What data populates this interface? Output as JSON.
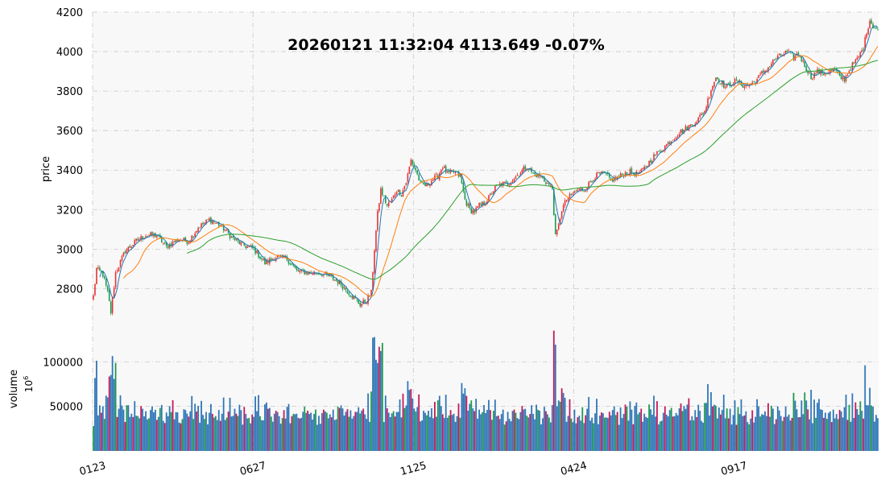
{
  "chart_data": [
    {
      "type": "candlestick",
      "title": "20260121 11:32:04   4113.649 -0.07%",
      "xlabel": "",
      "ylabel": "price",
      "ylim": [
        2610,
        4200
      ],
      "yticks": [
        2800,
        3000,
        3200,
        3400,
        3600,
        3800,
        4000,
        4200
      ],
      "xticks": [
        "0123",
        "0627",
        "1125",
        "0424",
        "0917"
      ],
      "grid": true,
      "legend": "none",
      "colors": {
        "up": "#e8312f",
        "down": "#1b9a4b",
        "ma_short": "#1f77b4",
        "ma_mid": "#ff7f0e",
        "ma_long": "#2ca02c"
      },
      "series": [
        {
          "name": "close",
          "anchors": [
            [
              0,
              2760
            ],
            [
              2,
              2900
            ],
            [
              6,
              2870
            ],
            [
              9,
              2780
            ],
            [
              11,
              2680
            ],
            [
              14,
              2880
            ],
            [
              20,
              2990
            ],
            [
              27,
              3040
            ],
            [
              33,
              3070
            ],
            [
              40,
              3070
            ],
            [
              46,
              3010
            ],
            [
              53,
              3050
            ],
            [
              60,
              3040
            ],
            [
              66,
              3110
            ],
            [
              73,
              3150
            ],
            [
              80,
              3120
            ],
            [
              87,
              3060
            ],
            [
              94,
              3020
            ],
            [
              101,
              3000
            ],
            [
              108,
              2930
            ],
            [
              115,
              2960
            ],
            [
              122,
              2950
            ],
            [
              128,
              2890
            ],
            [
              135,
              2880
            ],
            [
              142,
              2880
            ],
            [
              149,
              2860
            ],
            [
              155,
              2830
            ],
            [
              162,
              2770
            ],
            [
              168,
              2720
            ],
            [
              172,
              2740
            ],
            [
              175,
              2780
            ],
            [
              177,
              3000
            ],
            [
              179,
              3180
            ],
            [
              181,
              3300
            ],
            [
              183,
              3260
            ],
            [
              185,
              3220
            ],
            [
              188,
              3250
            ],
            [
              191,
              3300
            ],
            [
              194,
              3280
            ],
            [
              197,
              3340
            ],
            [
              200,
              3450
            ],
            [
              203,
              3400
            ],
            [
              206,
              3330
            ],
            [
              210,
              3320
            ],
            [
              213,
              3350
            ],
            [
              217,
              3370
            ],
            [
              220,
              3420
            ],
            [
              223,
              3380
            ],
            [
              227,
              3390
            ],
            [
              231,
              3370
            ],
            [
              234,
              3250
            ],
            [
              237,
              3200
            ],
            [
              240,
              3190
            ],
            [
              243,
              3220
            ],
            [
              246,
              3230
            ],
            [
              249,
              3260
            ],
            [
              253,
              3310
            ],
            [
              257,
              3330
            ],
            [
              261,
              3330
            ],
            [
              265,
              3360
            ],
            [
              269,
              3390
            ],
            [
              273,
              3420
            ],
            [
              277,
              3380
            ],
            [
              281,
              3370
            ],
            [
              285,
              3340
            ],
            [
              289,
              3310
            ],
            [
              291,
              3060
            ],
            [
              293,
              3120
            ],
            [
              295,
              3200
            ],
            [
              298,
              3250
            ],
            [
              302,
              3280
            ],
            [
              305,
              3300
            ],
            [
              309,
              3300
            ],
            [
              312,
              3330
            ],
            [
              315,
              3360
            ],
            [
              318,
              3380
            ],
            [
              322,
              3380
            ],
            [
              326,
              3350
            ],
            [
              330,
              3360
            ],
            [
              334,
              3380
            ],
            [
              338,
              3390
            ],
            [
              342,
              3380
            ],
            [
              345,
              3390
            ],
            [
              349,
              3430
            ],
            [
              353,
              3470
            ],
            [
              357,
              3500
            ],
            [
              361,
              3530
            ],
            [
              365,
              3560
            ],
            [
              369,
              3590
            ],
            [
              373,
              3610
            ],
            [
              377,
              3630
            ],
            [
              381,
              3660
            ],
            [
              385,
              3700
            ],
            [
              389,
              3810
            ],
            [
              392,
              3870
            ],
            [
              395,
              3850
            ],
            [
              398,
              3820
            ],
            [
              402,
              3840
            ],
            [
              405,
              3850
            ],
            [
              409,
              3830
            ],
            [
              413,
              3830
            ],
            [
              417,
              3850
            ],
            [
              421,
              3890
            ],
            [
              425,
              3920
            ],
            [
              429,
              3960
            ],
            [
              433,
              3980
            ],
            [
              437,
              4000
            ],
            [
              441,
              3970
            ],
            [
              444,
              3990
            ],
            [
              448,
              3930
            ],
            [
              452,
              3870
            ],
            [
              456,
              3900
            ],
            [
              460,
              3890
            ],
            [
              464,
              3900
            ],
            [
              467,
              3910
            ],
            [
              470,
              3870
            ],
            [
              473,
              3860
            ],
            [
              477,
              3920
            ],
            [
              481,
              3960
            ],
            [
              485,
              4020
            ],
            [
              487,
              4100
            ],
            [
              489,
              4160
            ],
            [
              491,
              4130
            ],
            [
              494,
              4110
            ]
          ],
          "n": 495,
          "xmax": 494
        },
        {
          "name": "volume",
          "ylabel": "volume",
          "unit": "10^6",
          "ylim": [
            0,
            140000
          ],
          "yticks": [
            50000,
            100000
          ]
        },
        {
          "name": "ma_short",
          "color": "#1f77b4"
        },
        {
          "name": "ma_mid",
          "color": "#ff7f0e"
        },
        {
          "name": "ma_long",
          "color": "#2ca02c"
        }
      ]
    }
  ]
}
